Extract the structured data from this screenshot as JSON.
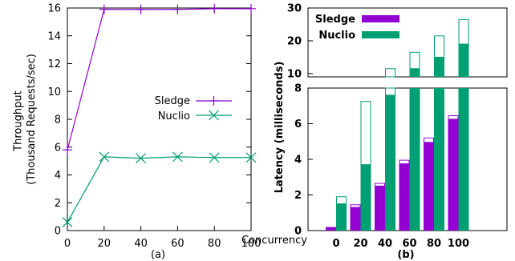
{
  "figure": {
    "left_caption": "(a)",
    "right_caption": "(b)",
    "shared_xlabel": "Concurrency"
  },
  "chart_data": [
    {
      "type": "line",
      "title": "",
      "xlabel": "",
      "ylabel": "Throughput\n(Thousand Requests/sec)",
      "ylabel_lines": [
        "Throughput",
        "(Thousand Requests/sec)"
      ],
      "x": [
        0,
        20,
        40,
        60,
        80,
        100
      ],
      "xlim": [
        0,
        100
      ],
      "ylim": [
        0,
        16
      ],
      "xticks": [
        0,
        20,
        40,
        60,
        80,
        100
      ],
      "yticks": [
        0,
        2,
        4,
        6,
        8,
        10,
        12,
        14,
        16
      ],
      "grid": false,
      "legend_position": "right",
      "series": [
        {
          "name": "Sledge",
          "marker": "plus",
          "color": "#9400d3",
          "values": [
            5.8,
            15.9,
            15.9,
            15.9,
            15.95,
            15.95
          ]
        },
        {
          "name": "Nuclio",
          "marker": "x",
          "color": "#009e73",
          "values": [
            0.6,
            5.3,
            5.2,
            5.3,
            5.25,
            5.25
          ]
        }
      ]
    },
    {
      "type": "bar",
      "title": "",
      "xlabel": "",
      "ylabel": "Latency (milliseconds)",
      "categories": [
        "0",
        "20",
        "40",
        "60",
        "80",
        "100"
      ],
      "broken_axis": true,
      "lower_ylim": [
        0,
        8
      ],
      "lower_yticks": [
        0,
        2,
        4,
        6,
        8
      ],
      "upper_ylim": [
        9,
        30
      ],
      "upper_yticks": [
        10,
        20,
        30
      ],
      "grid": false,
      "legend_position": "top-left",
      "series": [
        {
          "name": "Sledge",
          "color": "#9400d3",
          "values": [
            0.2,
            1.3,
            2.5,
            3.75,
            4.95,
            6.25
          ],
          "outline_top": [
            0.2,
            1.45,
            2.65,
            3.95,
            5.2,
            6.45
          ]
        },
        {
          "name": "Nuclio",
          "color": "#009e73",
          "values": [
            1.5,
            3.7,
            7.6,
            11.5,
            15,
            19
          ],
          "outline_top": [
            1.9,
            7.25,
            11.5,
            16.5,
            21.5,
            26.5
          ]
        }
      ]
    }
  ]
}
